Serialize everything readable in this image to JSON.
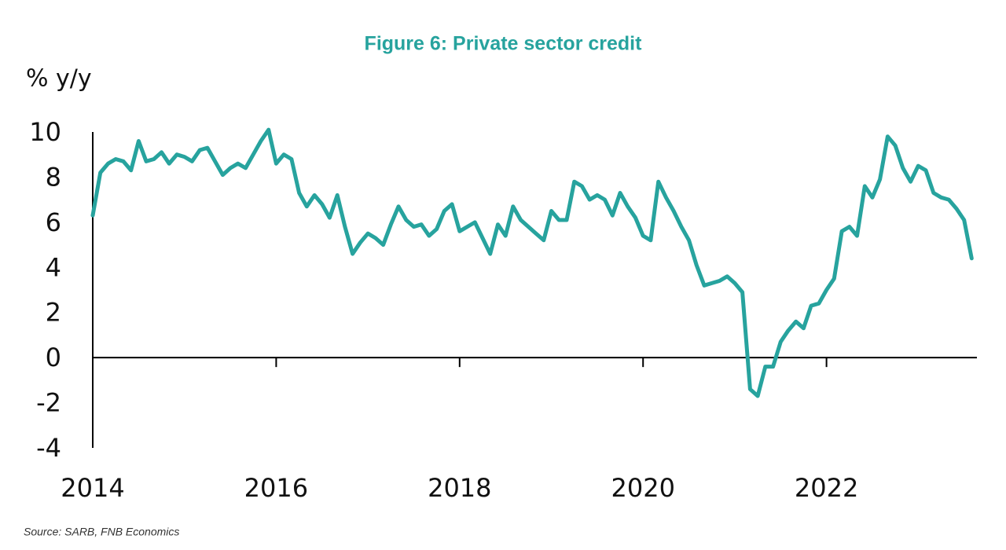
{
  "chart_data": {
    "type": "line",
    "title": "Figure 6: Private sector credit",
    "y_label": "% y/y",
    "source": "Source: SARB, FNB Economics",
    "color": "#27a39e",
    "xlim": [
      2014,
      2023.64
    ],
    "xticks": [
      2014,
      2016,
      2018,
      2020,
      2022
    ],
    "ylim": [
      -4,
      10
    ],
    "yticks": [
      -4,
      -2,
      0,
      2,
      4,
      6,
      8,
      10
    ],
    "x": [
      2014,
      2014.083,
      2014.167,
      2014.25,
      2014.333,
      2014.417,
      2014.5,
      2014.583,
      2014.667,
      2014.75,
      2014.833,
      2014.917,
      2015,
      2015.083,
      2015.167,
      2015.25,
      2015.333,
      2015.417,
      2015.5,
      2015.583,
      2015.667,
      2015.75,
      2015.833,
      2015.917,
      2016,
      2016.083,
      2016.167,
      2016.25,
      2016.333,
      2016.417,
      2016.5,
      2016.583,
      2016.667,
      2016.75,
      2016.833,
      2016.917,
      2017,
      2017.083,
      2017.167,
      2017.25,
      2017.333,
      2017.417,
      2017.5,
      2017.583,
      2017.667,
      2017.75,
      2017.833,
      2017.917,
      2018,
      2018.083,
      2018.167,
      2018.25,
      2018.333,
      2018.417,
      2018.5,
      2018.583,
      2018.667,
      2018.75,
      2018.833,
      2018.917,
      2019,
      2019.083,
      2019.167,
      2019.25,
      2019.333,
      2019.417,
      2019.5,
      2019.583,
      2019.667,
      2019.75,
      2019.833,
      2019.917,
      2020,
      2020.083,
      2020.167,
      2020.25,
      2020.333,
      2020.417,
      2020.5,
      2020.583,
      2020.667,
      2020.75,
      2020.833,
      2020.917,
      2021,
      2021.083,
      2021.167,
      2021.25,
      2021.333,
      2021.417,
      2021.5,
      2021.583,
      2021.667,
      2021.75,
      2021.833,
      2021.917,
      2022,
      2022.083,
      2022.167,
      2022.25,
      2022.333,
      2022.417,
      2022.5,
      2022.583,
      2022.667,
      2022.75,
      2022.833,
      2022.917,
      2023,
      2023.083,
      2023.167,
      2023.25,
      2023.333,
      2023.417,
      2023.5,
      2023.583
    ],
    "values": [
      6.3,
      8.2,
      8.6,
      8.8,
      8.7,
      8.3,
      9.6,
      8.7,
      8.8,
      9.1,
      8.6,
      9.0,
      8.9,
      8.7,
      9.2,
      9.3,
      8.7,
      8.1,
      8.4,
      8.6,
      8.4,
      9.0,
      9.6,
      10.1,
      8.6,
      9.0,
      8.8,
      7.3,
      6.7,
      7.2,
      6.8,
      6.2,
      7.2,
      5.8,
      4.6,
      5.1,
      5.5,
      5.3,
      5.0,
      5.9,
      6.7,
      6.1,
      5.8,
      5.9,
      5.4,
      5.7,
      6.5,
      6.8,
      5.6,
      5.8,
      6.0,
      5.3,
      4.6,
      5.9,
      5.4,
      6.7,
      6.1,
      5.8,
      5.5,
      5.2,
      6.5,
      6.1,
      6.1,
      7.8,
      7.6,
      7.0,
      7.2,
      7.0,
      6.3,
      7.3,
      6.7,
      6.2,
      5.4,
      5.2,
      7.8,
      7.1,
      6.5,
      5.8,
      5.2,
      4.1,
      3.2,
      3.3,
      3.4,
      3.6,
      3.3,
      2.9,
      -1.4,
      -1.7,
      -0.4,
      -0.4,
      0.7,
      1.2,
      1.6,
      1.3,
      2.3,
      2.4,
      3.0,
      3.5,
      5.6,
      5.8,
      5.4,
      7.6,
      7.1,
      7.9,
      9.8,
      9.4,
      8.4,
      7.8,
      8.5,
      8.3,
      7.3,
      7.1,
      7.0,
      6.6,
      6.1,
      4.4
    ]
  }
}
